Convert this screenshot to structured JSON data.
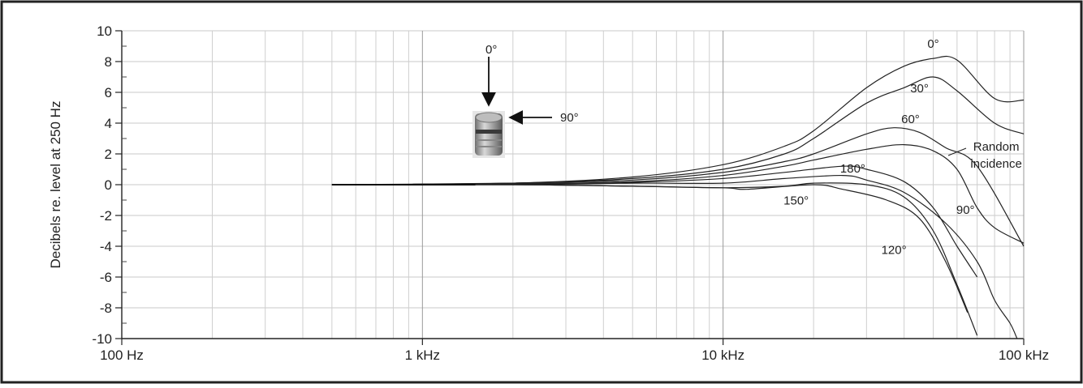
{
  "chart_data": {
    "type": "line",
    "x_scale": "log",
    "xlim": [
      "100 Hz",
      "100 kHz"
    ],
    "ylim": [
      -10,
      10
    ],
    "ylabel": "Decibels re. level at 250 Hz",
    "grid": true,
    "y_ticks": [
      "10",
      "8",
      "6",
      "4",
      "2",
      "0",
      "-2",
      "-4",
      "-6",
      "-8",
      "-10"
    ],
    "x_ticks": [
      "100 Hz",
      "1 kHz",
      "10 kHz",
      "100 kHz"
    ],
    "inset_labels": {
      "top": "0°",
      "side": "90°"
    },
    "series": [
      {
        "name": "0°",
        "x": [
          "500 Hz",
          "2 kHz",
          "5 kHz",
          "10 kHz",
          "16 kHz",
          "20 kHz",
          "30 kHz",
          "40 kHz",
          "50 kHz",
          "60 kHz",
          "80 kHz",
          "100 kHz"
        ],
        "y": [
          0,
          0.1,
          0.5,
          1.3,
          2.5,
          3.5,
          6.3,
          7.7,
          8.2,
          8.1,
          5.6,
          5.5
        ]
      },
      {
        "name": "30°",
        "x": [
          "500 Hz",
          "2 kHz",
          "5 kHz",
          "10 kHz",
          "16 kHz",
          "20 kHz",
          "30 kHz",
          "40 kHz",
          "50 kHz",
          "60 kHz",
          "80 kHz",
          "100 kHz"
        ],
        "y": [
          0,
          0.1,
          0.4,
          1.0,
          2.0,
          3.0,
          5.3,
          6.3,
          7.0,
          6.1,
          4.0,
          3.3
        ]
      },
      {
        "name": "60°",
        "x": [
          "500 Hz",
          "2 kHz",
          "5 kHz",
          "10 kHz",
          "16 kHz",
          "20 kHz",
          "30 kHz",
          "37 kHz",
          "45 kHz",
          "55 kHz",
          "70 kHz",
          "100 kHz"
        ],
        "y": [
          0,
          0.1,
          0.3,
          0.8,
          1.5,
          2.0,
          3.3,
          3.7,
          3.4,
          2.4,
          1.2,
          -4.0
        ]
      },
      {
        "name": "Random incidence",
        "x": [
          "500 Hz",
          "2 kHz",
          "5 kHz",
          "10 kHz",
          "16 kHz",
          "20 kHz",
          "30 kHz",
          "40 kHz",
          "50 kHz",
          "60 kHz",
          "70 kHz",
          "80 kHz",
          "100 kHz"
        ],
        "y": [
          0,
          0.05,
          0.2,
          0.6,
          1.2,
          1.6,
          2.3,
          2.6,
          2.2,
          1.0,
          -1.5,
          -2.8,
          -3.8
        ]
      },
      {
        "name": "180°",
        "x": [
          "500 Hz",
          "2 kHz",
          "5 kHz",
          "10 kHz",
          "16 kHz",
          "25 kHz",
          "30 kHz",
          "40 kHz",
          "50 kHz",
          "60 kHz",
          "70 kHz"
        ],
        "y": [
          0,
          0.05,
          0.15,
          0.4,
          0.8,
          1.2,
          1.0,
          0.2,
          -1.5,
          -4.0,
          -6.0
        ]
      },
      {
        "name": "90°",
        "x": [
          "500 Hz",
          "2 kHz",
          "5 kHz",
          "10 kHz",
          "16 kHz",
          "25 kHz",
          "30 kHz",
          "40 kHz",
          "55 kHz",
          "70 kHz",
          "80 kHz",
          "90 kHz",
          "95 kHz"
        ],
        "y": [
          0,
          0,
          0.1,
          0.1,
          0.4,
          0.6,
          0.3,
          -0.5,
          -2.5,
          -5.0,
          -7.5,
          -9.0,
          -10.0
        ]
      },
      {
        "name": "120°",
        "x": [
          "500 Hz",
          "2 kHz",
          "5 kHz",
          "10 kHz",
          "16 kHz",
          "20 kHz",
          "30 kHz",
          "40 kHz",
          "50 kHz",
          "60 kHz",
          "70 kHz"
        ],
        "y": [
          0,
          0,
          -0.1,
          -0.2,
          -0.1,
          0.1,
          0,
          -0.8,
          -3.0,
          -6.5,
          -9.8
        ]
      },
      {
        "name": "150°",
        "x": [
          "500 Hz",
          "2 kHz",
          "5 kHz",
          "10 kHz",
          "12 kHz",
          "20 kHz",
          "25 kHz",
          "35 kHz",
          "45 kHz",
          "55 kHz",
          "65 kHz"
        ],
        "y": [
          0,
          0,
          -0.1,
          -0.2,
          -0.3,
          0,
          -0.3,
          -1.0,
          -2.2,
          -5.0,
          -8.3
        ]
      }
    ],
    "annotations": [
      {
        "text": "0°",
        "x_hz": 50000,
        "y": 8.9
      },
      {
        "text": "30°",
        "x_hz": 45000,
        "y": 6.0
      },
      {
        "text": "60°",
        "x_hz": 42000,
        "y": 4.0
      },
      {
        "text": "Random",
        "x_hz": 81000,
        "y": 2.2
      },
      {
        "text": "incidence",
        "x_hz": 81000,
        "y": 1.1
      },
      {
        "text": "180°",
        "x_hz": 27000,
        "y": 0.8
      },
      {
        "text": "90°",
        "x_hz": 64000,
        "y": -1.9
      },
      {
        "text": "150°",
        "x_hz": 17500,
        "y": -1.3
      },
      {
        "text": "120°",
        "x_hz": 37000,
        "y": -4.5
      }
    ]
  }
}
